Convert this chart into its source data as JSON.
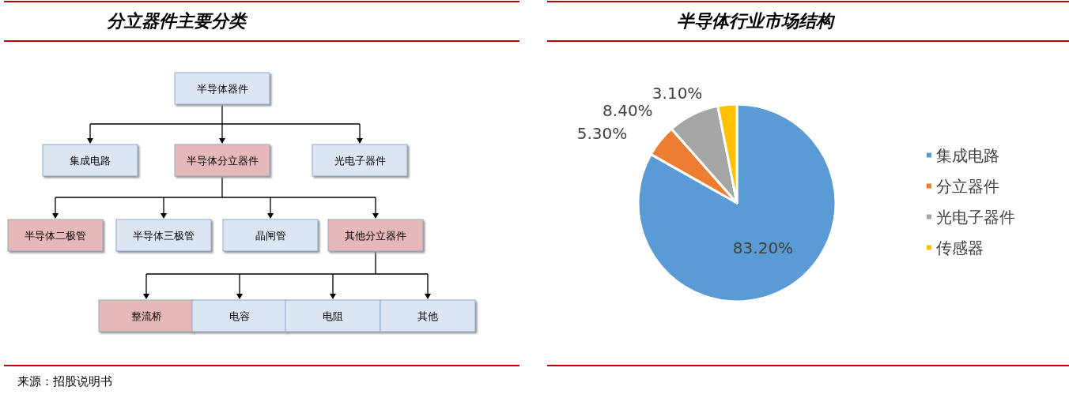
{
  "chart_data": [
    {
      "type": "other",
      "title": "分立器件主要分类",
      "annotations": [
        "半导体器件",
        "集成电路",
        "半导体分立器件",
        "光电子器件",
        "半导体二极管",
        "半导体三极管",
        "晶闸管",
        "其他分立器件",
        "整流桥",
        "电容",
        "电阻",
        "其他",
        "来源：招股说明书"
      ],
      "colors": [
        "#dce6f2",
        "#dce6f2",
        "#e6b9b8",
        "#dce6f2",
        "#e6b9b8",
        "#dce6f2",
        "#dce6f2",
        "#e6b9b8",
        "#e6b9b8",
        "#dce6f2",
        "#dce6f2",
        "#dce6f2"
      ]
    },
    {
      "type": "pie",
      "title": "半导体行业市场结构",
      "categories": [
        "集成电路",
        "分立器件",
        "光电子器件",
        "传感器"
      ],
      "values": [
        83.2,
        5.3,
        8.4,
        3.1
      ],
      "colors": [
        "#5b9bd5",
        "#ed7d31",
        "#a5a5a5",
        "#ffc000"
      ],
      "value_labels": [
        "83.20%",
        "5.30%",
        "8.40%",
        "3.10%"
      ],
      "legend": "right"
    }
  ]
}
